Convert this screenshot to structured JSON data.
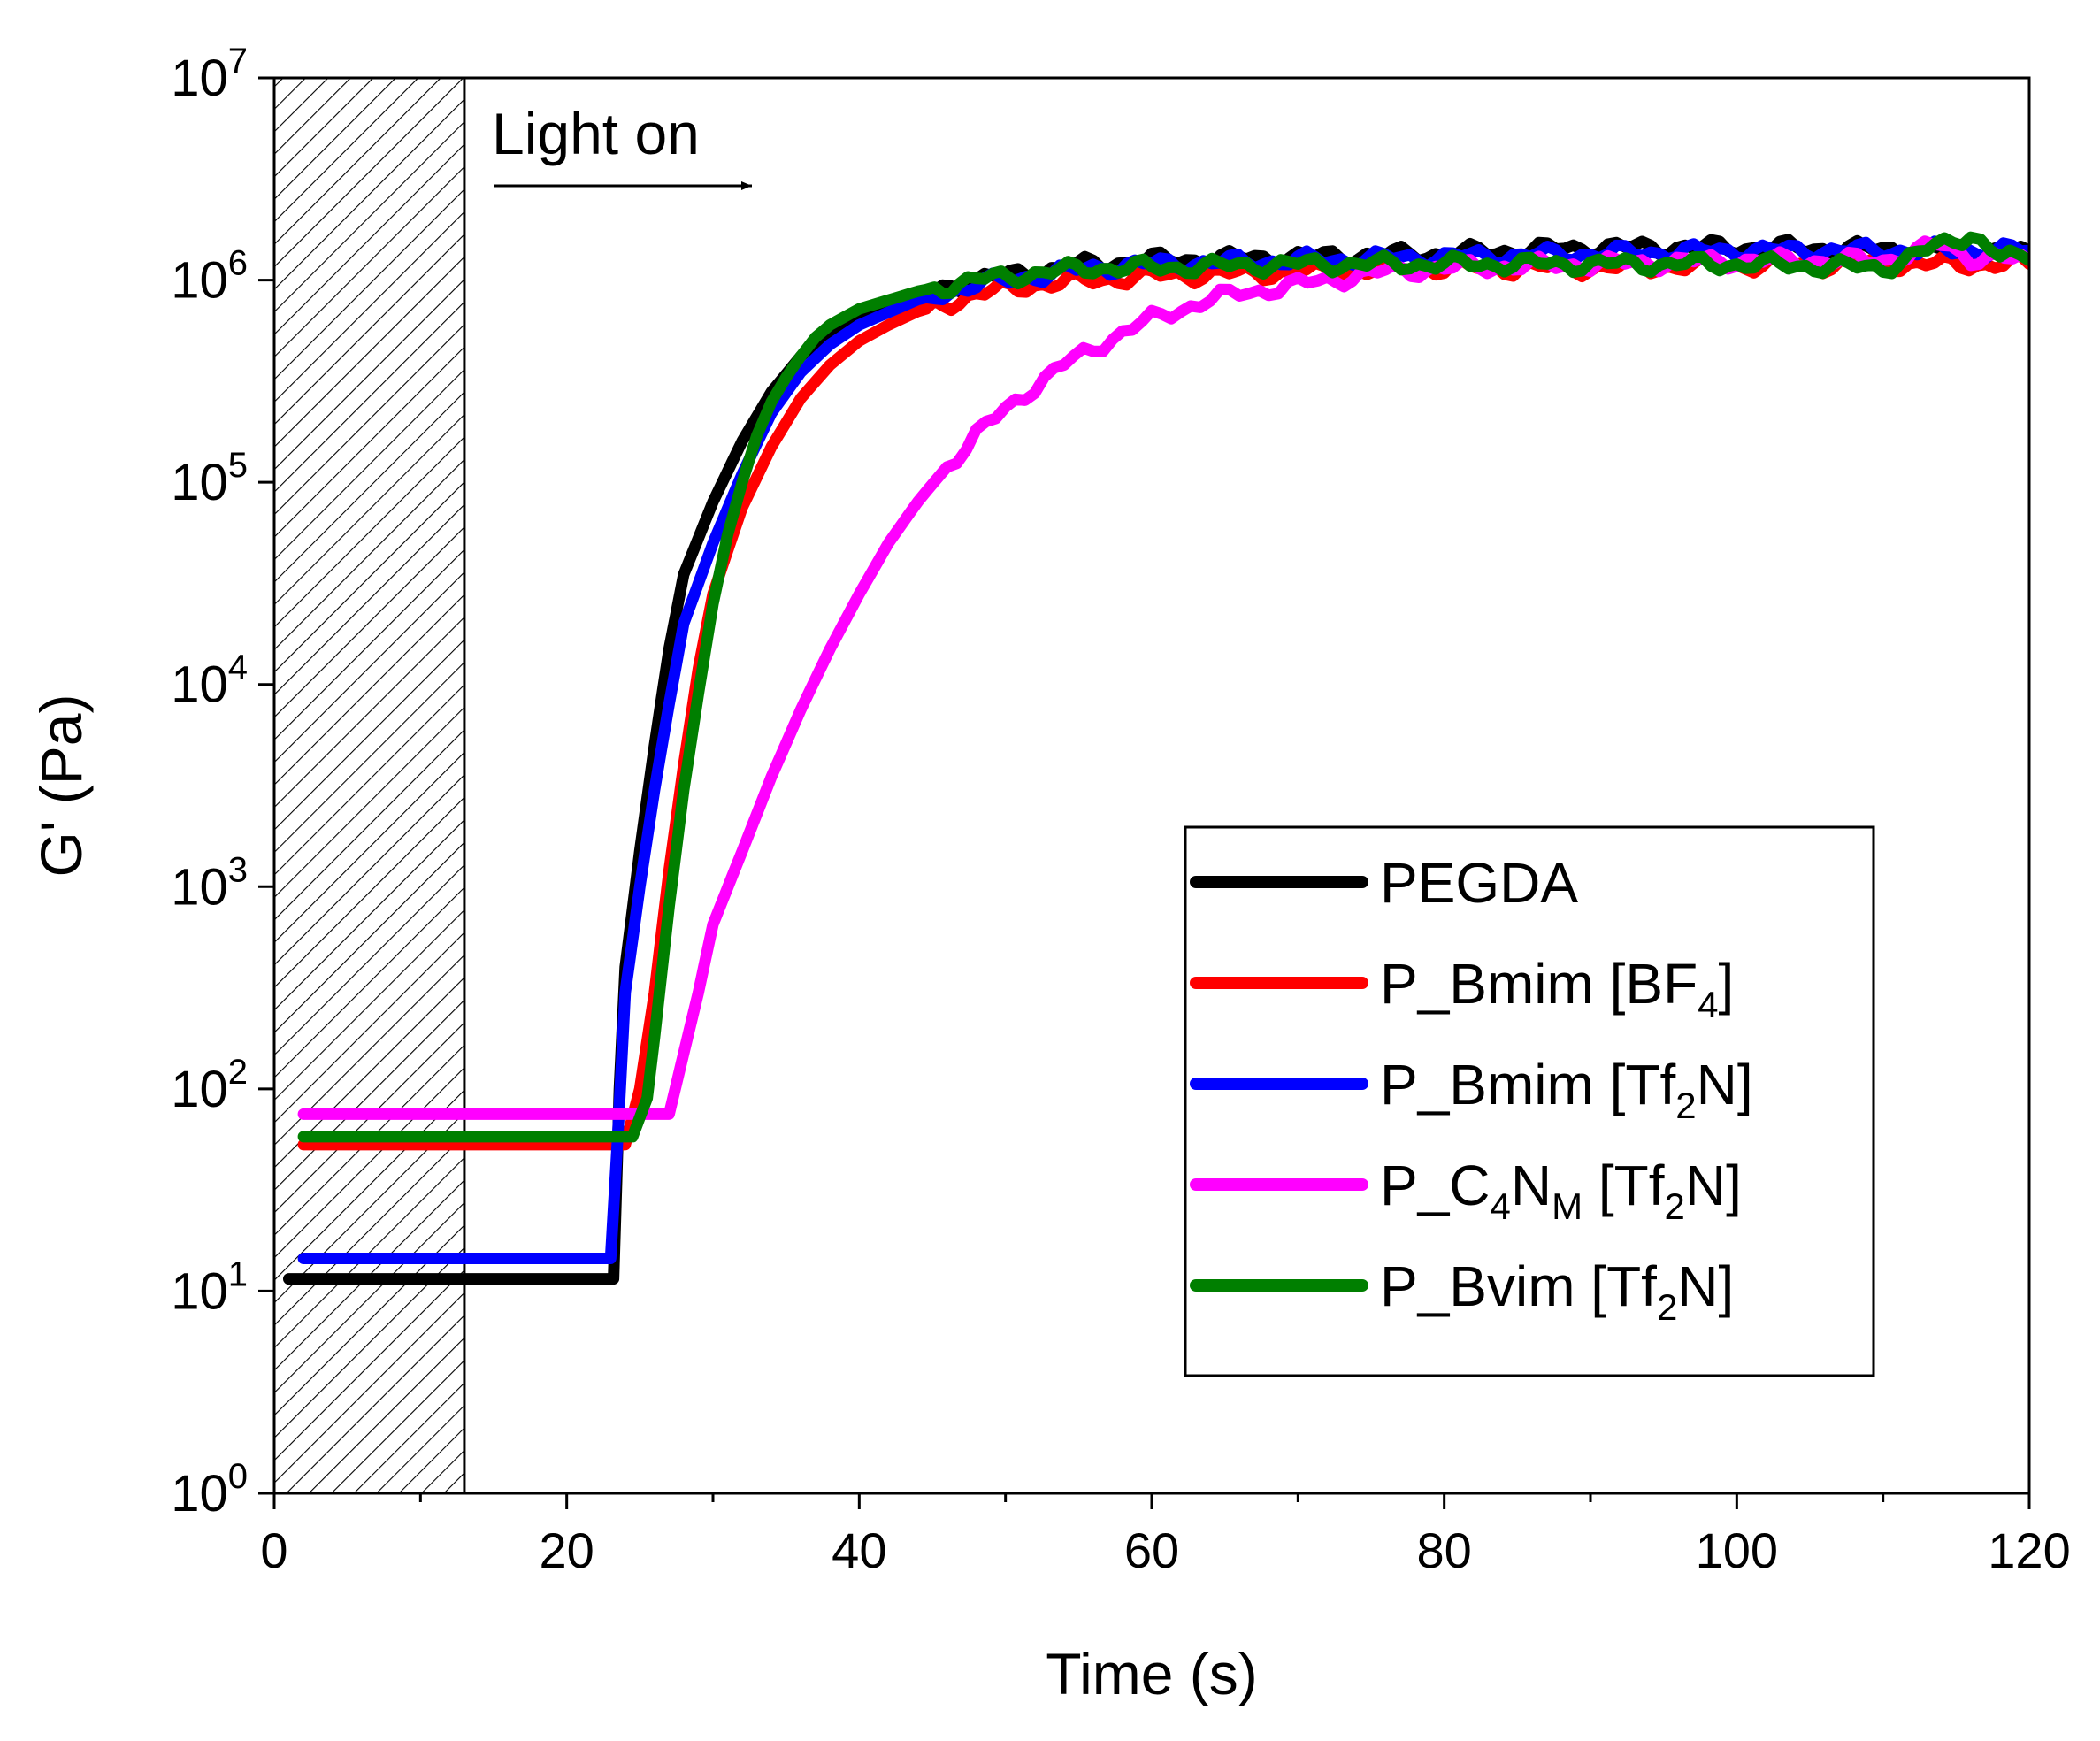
{
  "chart_data": {
    "type": "line",
    "title": "",
    "xlabel": "Time (s)",
    "ylabel": "G' (Pa)",
    "xlim": [
      0,
      120
    ],
    "ylim_log10": [
      0,
      7
    ],
    "y_scale": "log",
    "x_ticks": [
      "0",
      "20",
      "40",
      "60",
      "80",
      "100",
      "120"
    ],
    "y_ticks": [
      {
        "base": "10",
        "exp": "0"
      },
      {
        "base": "10",
        "exp": "1"
      },
      {
        "base": "10",
        "exp": "2"
      },
      {
        "base": "10",
        "exp": "3"
      },
      {
        "base": "10",
        "exp": "4"
      },
      {
        "base": "10",
        "exp": "5"
      },
      {
        "base": "10",
        "exp": "6"
      },
      {
        "base": "10",
        "exp": "7"
      }
    ],
    "grid": false,
    "legend_position": "bottom-right",
    "annotation": {
      "text": "Light on",
      "dark_region_x": [
        0,
        13
      ]
    },
    "series": [
      {
        "key": "pegda",
        "name": "PEGDA",
        "label_parts": [
          {
            "t": "PEGDA"
          }
        ],
        "color": "#000000",
        "points": [
          [
            1,
            11.5
          ],
          [
            23.2,
            11.5
          ],
          [
            23.6,
            100
          ],
          [
            24,
            400
          ],
          [
            25,
            1500
          ],
          [
            26,
            5000
          ],
          [
            27,
            15000
          ],
          [
            28,
            35000
          ],
          [
            30,
            80000
          ],
          [
            32,
            160000
          ],
          [
            34,
            280000
          ],
          [
            36,
            420000
          ],
          [
            38,
            560000
          ],
          [
            40,
            680000
          ],
          [
            44,
            850000
          ],
          [
            48,
            1000000
          ],
          [
            52,
            1100000
          ],
          [
            56,
            1200000
          ],
          [
            60,
            1250000
          ],
          [
            70,
            1300000
          ],
          [
            80,
            1350000
          ],
          [
            90,
            1450000
          ],
          [
            100,
            1450000
          ],
          [
            110,
            1420000
          ],
          [
            120,
            1400000
          ]
        ]
      },
      {
        "key": "bmim_bf4",
        "name": "P_Bmim [BF4]",
        "label_parts": [
          {
            "t": "P_Bmim [BF"
          },
          {
            "sub": "4"
          },
          {
            "t": "]"
          }
        ],
        "color": "#ff0000",
        "points": [
          [
            2,
            53
          ],
          [
            24,
            53
          ],
          [
            25,
            100
          ],
          [
            26,
            300
          ],
          [
            27,
            1200
          ],
          [
            28,
            4000
          ],
          [
            29,
            12000
          ],
          [
            30,
            28000
          ],
          [
            32,
            75000
          ],
          [
            34,
            150000
          ],
          [
            36,
            260000
          ],
          [
            38,
            380000
          ],
          [
            40,
            500000
          ],
          [
            42,
            600000
          ],
          [
            44,
            700000
          ],
          [
            48,
            850000
          ],
          [
            52,
            950000
          ],
          [
            56,
            1000000
          ],
          [
            60,
            1050000
          ],
          [
            70,
            1100000
          ],
          [
            80,
            1150000
          ],
          [
            90,
            1150000
          ],
          [
            100,
            1180000
          ],
          [
            110,
            1200000
          ],
          [
            120,
            1200000
          ]
        ]
      },
      {
        "key": "bmim_tf2n",
        "name": "P_Bmim [Tf2N]",
        "label_parts": [
          {
            "t": "P_Bmim [Tf"
          },
          {
            "sub": "2"
          },
          {
            "t": "N]"
          }
        ],
        "color": "#0000ff",
        "points": [
          [
            2,
            14.5
          ],
          [
            23,
            14.5
          ],
          [
            23.5,
            60
          ],
          [
            24,
            300
          ],
          [
            25,
            1000
          ],
          [
            26,
            3000
          ],
          [
            27,
            8000
          ],
          [
            28,
            20000
          ],
          [
            30,
            50000
          ],
          [
            32,
            110000
          ],
          [
            34,
            220000
          ],
          [
            36,
            350000
          ],
          [
            38,
            480000
          ],
          [
            40,
            600000
          ],
          [
            44,
            800000
          ],
          [
            48,
            950000
          ],
          [
            52,
            1050000
          ],
          [
            56,
            1150000
          ],
          [
            60,
            1200000
          ],
          [
            70,
            1250000
          ],
          [
            80,
            1300000
          ],
          [
            90,
            1350000
          ],
          [
            100,
            1400000
          ],
          [
            110,
            1400000
          ],
          [
            120,
            1400000
          ]
        ]
      },
      {
        "key": "c4nm_tf2n",
        "name": "P_C4NM [Tf2N]",
        "label_parts": [
          {
            "t": "P_C"
          },
          {
            "sub": "4"
          },
          {
            "t": "N"
          },
          {
            "sub": "M"
          },
          {
            "t": " [Tf"
          },
          {
            "sub": "2"
          },
          {
            "t": "N]"
          }
        ],
        "color": "#ff00ff",
        "points": [
          [
            2,
            75
          ],
          [
            27,
            75
          ],
          [
            28,
            150
          ],
          [
            29,
            300
          ],
          [
            30,
            650
          ],
          [
            32,
            1500
          ],
          [
            34,
            3500
          ],
          [
            36,
            7500
          ],
          [
            38,
            15000
          ],
          [
            40,
            28000
          ],
          [
            42,
            50000
          ],
          [
            44,
            80000
          ],
          [
            46,
            120000
          ],
          [
            48,
            170000
          ],
          [
            50,
            230000
          ],
          [
            52,
            300000
          ],
          [
            54,
            380000
          ],
          [
            56,
            460000
          ],
          [
            58,
            550000
          ],
          [
            60,
            640000
          ],
          [
            62,
            720000
          ],
          [
            64,
            800000
          ],
          [
            66,
            860000
          ],
          [
            68,
            900000
          ],
          [
            70,
            950000
          ],
          [
            72,
            1000000
          ],
          [
            76,
            1100000
          ],
          [
            80,
            1150000
          ],
          [
            90,
            1200000
          ],
          [
            100,
            1250000
          ],
          [
            110,
            1250000
          ],
          [
            114,
            1500000
          ],
          [
            116,
            1300000
          ],
          [
            120,
            1250000
          ]
        ]
      },
      {
        "key": "bvim_tf2n",
        "name": "P_Bvim [Tf2N]",
        "label_parts": [
          {
            "t": "P_Bvim [Tf"
          },
          {
            "sub": "2"
          },
          {
            "t": "N]"
          }
        ],
        "color": "#007f00",
        "points": [
          [
            2,
            58
          ],
          [
            24.5,
            58
          ],
          [
            25.5,
            90
          ],
          [
            26,
            180
          ],
          [
            27,
            800
          ],
          [
            28,
            3000
          ],
          [
            29,
            9000
          ],
          [
            30,
            25000
          ],
          [
            31,
            55000
          ],
          [
            32,
            100000
          ],
          [
            33,
            170000
          ],
          [
            34,
            250000
          ],
          [
            35,
            330000
          ],
          [
            36,
            420000
          ],
          [
            37,
            520000
          ],
          [
            38,
            600000
          ],
          [
            40,
            720000
          ],
          [
            44,
            880000
          ],
          [
            48,
            1000000
          ],
          [
            52,
            1080000
          ],
          [
            56,
            1150000
          ],
          [
            60,
            1150000
          ],
          [
            70,
            1200000
          ],
          [
            80,
            1200000
          ],
          [
            90,
            1200000
          ],
          [
            100,
            1200000
          ],
          [
            110,
            1150000
          ],
          [
            116,
            1700000
          ],
          [
            118,
            1300000
          ],
          [
            120,
            1250000
          ]
        ]
      }
    ]
  }
}
